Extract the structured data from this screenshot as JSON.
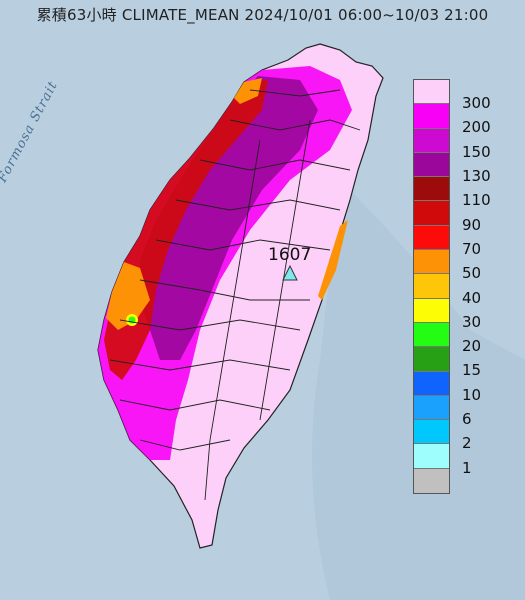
{
  "title": "累積63小時 CLIMATE_MEAN 2024/10/01 06:00~10/03 21:00",
  "strait_label": "Formosa Strait",
  "peak_station": {
    "value": "1607",
    "marker": "triangle-icon",
    "marker_color": "#7de8f0"
  },
  "legend": {
    "items": [
      {
        "label": "300",
        "color": "#fdd0f9"
      },
      {
        "label": "200",
        "color": "#f700f5"
      },
      {
        "label": "150",
        "color": "#cd0ad0"
      },
      {
        "label": "130",
        "color": "#9a079a"
      },
      {
        "label": "110",
        "color": "#9d0b0b"
      },
      {
        "label": "90",
        "color": "#d00a0a"
      },
      {
        "label": "70",
        "color": "#fd0a0a"
      },
      {
        "label": "50",
        "color": "#fd9207"
      },
      {
        "label": "40",
        "color": "#fdc60a"
      },
      {
        "label": "30",
        "color": "#fdfd06"
      },
      {
        "label": "20",
        "color": "#23fd14"
      },
      {
        "label": "15",
        "color": "#28a016"
      },
      {
        "label": "10",
        "color": "#0e64fd"
      },
      {
        "label": "6",
        "color": "#1aa0fd"
      },
      {
        "label": "2",
        "color": "#00c8fd"
      },
      {
        "label": "1",
        "color": "#9efefe"
      },
      {
        "label": "",
        "color": "#c0c0c0"
      }
    ]
  },
  "colors": {
    "sea": "#b9cfe0",
    "land_high": "#fdd0f9",
    "boundary": "#222222"
  }
}
